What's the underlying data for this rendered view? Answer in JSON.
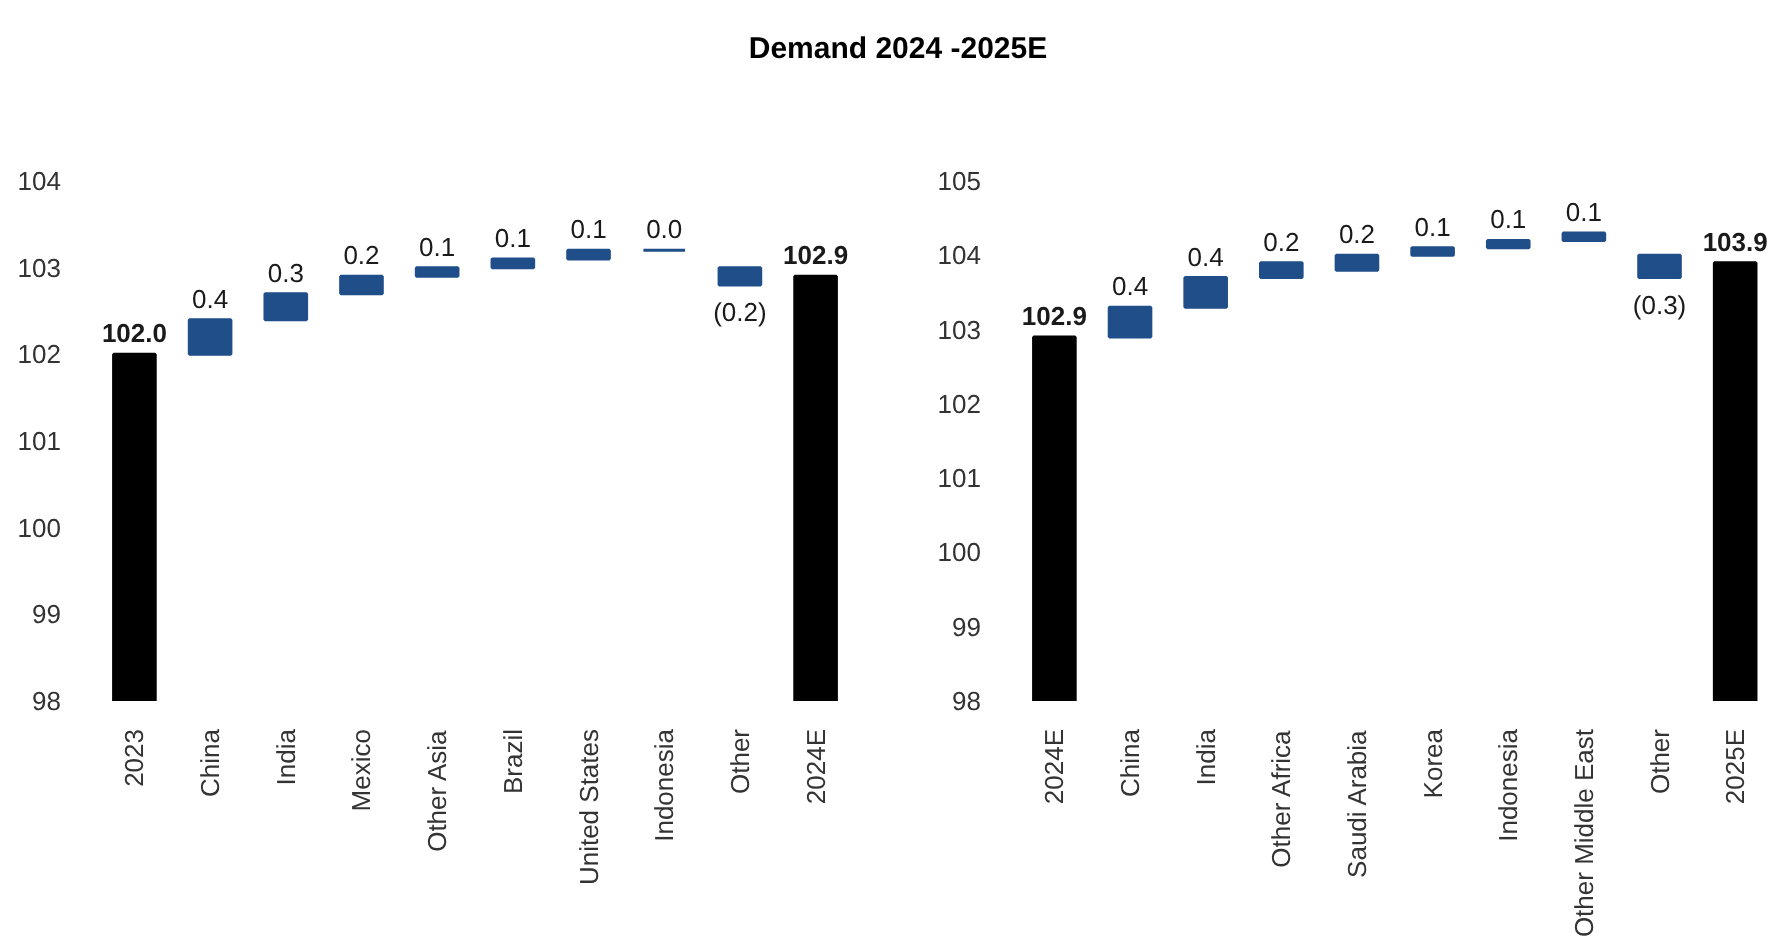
{
  "chart_data": [
    {
      "type": "bar",
      "title": "Demand 2024 -2025E",
      "categories": [
        "2023",
        "China",
        "India",
        "Mexico",
        "Other Asia",
        "Brazil",
        "United States",
        "Indonesia",
        "Other",
        "2024E"
      ],
      "values": [
        102.0,
        0.4,
        0.3,
        0.2,
        0.1,
        0.1,
        0.1,
        0.0,
        -0.2,
        102.9
      ],
      "base": [
        null,
        102.0,
        102.4,
        102.7,
        102.9,
        103.0,
        103.1,
        103.2,
        103.0,
        null
      ],
      "colors": [
        "#000000",
        "#1f4e89",
        "#1f4e89",
        "#1f4e89",
        "#1f4e89",
        "#1f4e89",
        "#1f4e89",
        "#1f4e89",
        "#1f4e89",
        "#000000"
      ],
      "value_labels": [
        "102.0",
        "0.4",
        "0.3",
        "0.2",
        "0.1",
        "0.1",
        "0.1",
        "0.0",
        "(0.2)",
        "102.9"
      ],
      "ylim": [
        98,
        104
      ],
      "yticks": [
        98,
        99,
        100,
        101,
        102,
        103,
        104
      ]
    },
    {
      "type": "bar",
      "categories": [
        "2024E",
        "China",
        "India",
        "Other Africa",
        "Saudi Arabia",
        "Korea",
        "Indonesia",
        "Other Middle East",
        "Other",
        "2025E"
      ],
      "values": [
        102.9,
        0.4,
        0.4,
        0.2,
        0.2,
        0.1,
        0.1,
        0.1,
        -0.3,
        103.9
      ],
      "base": [
        null,
        102.9,
        103.3,
        103.7,
        103.8,
        104.0,
        104.1,
        104.2,
        104.0,
        null
      ],
      "colors": [
        "#000000",
        "#1f4e89",
        "#1f4e89",
        "#1f4e89",
        "#1f4e89",
        "#1f4e89",
        "#1f4e89",
        "#1f4e89",
        "#1f4e89",
        "#000000"
      ],
      "value_labels": [
        "102.9",
        "0.4",
        "0.4",
        "0.2",
        "0.2",
        "0.1",
        "0.1",
        "0.1",
        "(0.3)",
        "103.9"
      ],
      "ylim": [
        98,
        105
      ],
      "yticks": [
        98,
        99,
        100,
        101,
        102,
        103,
        104,
        105
      ]
    }
  ]
}
